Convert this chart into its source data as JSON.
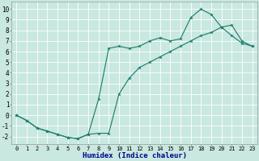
{
  "xlabel": "Humidex (Indice chaleur)",
  "bg_color": "#c8e8e0",
  "line_color": "#1a7a6a",
  "grid_color": "#ffffff",
  "xlim": [
    -0.5,
    23.5
  ],
  "ylim": [
    -2.7,
    10.7
  ],
  "xticks": [
    0,
    1,
    2,
    3,
    4,
    5,
    6,
    7,
    8,
    9,
    10,
    11,
    12,
    13,
    14,
    15,
    16,
    17,
    18,
    19,
    20,
    21,
    22,
    23
  ],
  "yticks": [
    -2,
    -1,
    0,
    1,
    2,
    3,
    4,
    5,
    6,
    7,
    8,
    9,
    10
  ],
  "line1_x": [
    0,
    1,
    2,
    3,
    4,
    5,
    6,
    7,
    8,
    9,
    10,
    11,
    12,
    13,
    14,
    15,
    16,
    17,
    18,
    19,
    20,
    21,
    22,
    23
  ],
  "line1_y": [
    0,
    -0.5,
    -1.2,
    -1.5,
    -1.8,
    -2.1,
    -2.2,
    -1.8,
    1.5,
    6.3,
    6.5,
    6.3,
    6.5,
    7.0,
    7.3,
    7.0,
    7.2,
    9.2,
    10.0,
    9.5,
    8.3,
    7.5,
    6.8,
    6.5
  ],
  "line2_x": [
    0,
    1,
    2,
    3,
    4,
    5,
    6,
    7,
    8,
    9,
    10,
    11,
    12,
    13,
    14,
    15,
    16,
    17,
    18,
    19,
    20,
    21,
    22,
    23
  ],
  "line2_y": [
    0,
    -0.5,
    -1.2,
    -1.5,
    -1.8,
    -2.1,
    -2.2,
    -1.8,
    -1.7,
    -1.7,
    2.0,
    3.5,
    4.5,
    5.0,
    5.5,
    6.0,
    6.5,
    7.0,
    7.5,
    7.8,
    8.3,
    8.5,
    7.0,
    6.5
  ],
  "xlabel_color": "#00008b",
  "xlabel_fontsize": 6.5,
  "tick_fontsize_x": 5.0,
  "tick_fontsize_y": 5.5
}
